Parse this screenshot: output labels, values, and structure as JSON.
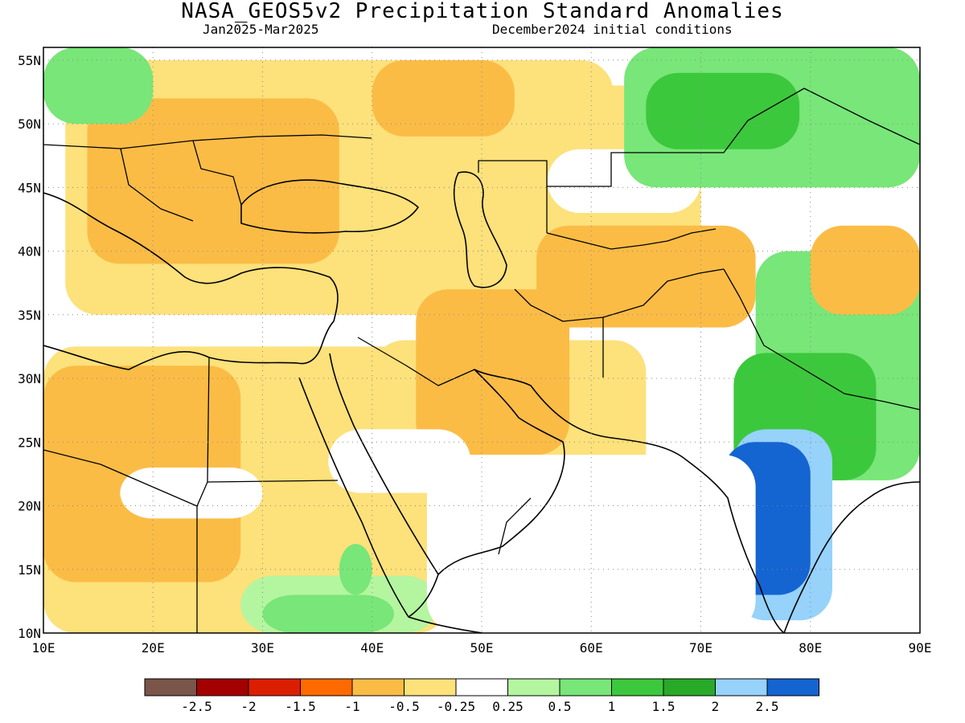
{
  "header": {
    "title": "NASA_GEOS5v2 Precipitation Standard Anomalies",
    "period": "Jan2025-Mar2025",
    "init": "December2024 initial conditions"
  },
  "map": {
    "lon_range": [
      10,
      90
    ],
    "lat_range": [
      10,
      56
    ],
    "lon_ticks": [
      "10E",
      "20E",
      "30E",
      "40E",
      "50E",
      "60E",
      "70E",
      "80E",
      "90E"
    ],
    "lat_ticks": [
      "10N",
      "15N",
      "20N",
      "25N",
      "30N",
      "35N",
      "40N",
      "45N",
      "50N",
      "55N"
    ],
    "grid": "dotted"
  },
  "colors": {
    "brown": "#7a5549",
    "darkred": "#a40000",
    "red": "#dc1e00",
    "orange": "#ff6a00",
    "lightorange": "#fbbc46",
    "yellow": "#fde17b",
    "white": "#ffffff",
    "lightgreen": "#b4f5a0",
    "green": "#78e678",
    "midgreen": "#3cc83c",
    "darkgreen": "#28aa28",
    "lightblue": "#96d2fa",
    "blue": "#1464d2"
  },
  "regions": [
    {
      "color": "yellow",
      "lon": [
        10,
        47
      ],
      "lat": [
        10,
        32.5
      ]
    },
    {
      "color": "yellow",
      "lon": [
        12,
        70
      ],
      "lat": [
        35,
        53
      ]
    },
    {
      "color": "yellow",
      "lon": [
        40,
        65
      ],
      "lat": [
        17,
        33
      ]
    },
    {
      "color": "yellow",
      "lon": [
        12,
        62
      ],
      "lat": [
        48,
        55
      ]
    },
    {
      "color": "lightorange",
      "lon": [
        10,
        28
      ],
      "lat": [
        14,
        31
      ]
    },
    {
      "color": "lightorange",
      "lon": [
        14,
        37
      ],
      "lat": [
        39,
        52
      ]
    },
    {
      "color": "lightorange",
      "lon": [
        44,
        58
      ],
      "lat": [
        24,
        37
      ]
    },
    {
      "color": "lightorange",
      "lon": [
        55,
        75
      ],
      "lat": [
        34,
        42
      ]
    },
    {
      "color": "lightorange",
      "lon": [
        40,
        53
      ],
      "lat": [
        49,
        55
      ]
    },
    {
      "color": "white",
      "lon": [
        56,
        70
      ],
      "lat": [
        43,
        48
      ]
    },
    {
      "color": "white",
      "lon": [
        36,
        49
      ],
      "lat": [
        21,
        26
      ]
    },
    {
      "color": "white",
      "lon": [
        17,
        30
      ],
      "lat": [
        19,
        23
      ]
    },
    {
      "color": "green",
      "lon": [
        63,
        90
      ],
      "lat": [
        45,
        56
      ]
    },
    {
      "color": "midgreen",
      "lon": [
        65,
        79
      ],
      "lat": [
        48,
        54
      ]
    },
    {
      "color": "green",
      "lon": [
        75,
        90
      ],
      "lat": [
        22,
        40
      ]
    },
    {
      "color": "midgreen",
      "lon": [
        73,
        86
      ],
      "lat": [
        22,
        32
      ]
    },
    {
      "color": "green",
      "lon": [
        10,
        20
      ],
      "lat": [
        50,
        56
      ]
    },
    {
      "color": "lightorange",
      "lon": [
        80,
        90
      ],
      "lat": [
        35,
        42
      ]
    },
    {
      "color": "lightgreen",
      "lon": [
        28,
        46
      ],
      "lat": [
        10,
        14.5
      ]
    },
    {
      "color": "green",
      "lon": [
        30,
        42
      ],
      "lat": [
        10,
        13
      ]
    },
    {
      "color": "green",
      "lon": [
        37,
        40
      ],
      "lat": [
        13,
        17
      ]
    },
    {
      "color": "lightblue",
      "lon": [
        73,
        82
      ],
      "lat": [
        11,
        26
      ]
    },
    {
      "color": "blue",
      "lon": [
        72,
        80
      ],
      "lat": [
        13,
        25
      ]
    },
    {
      "color": "blue",
      "lon": [
        70.5,
        76
      ],
      "lat": [
        20,
        23
      ]
    },
    {
      "color": "white",
      "lon": [
        45,
        75
      ],
      "lat": [
        10,
        24
      ]
    },
    {
      "color": "white",
      "lon": [
        86,
        90
      ],
      "lat": [
        10,
        22
      ]
    }
  ],
  "legend": {
    "swatches": [
      "brown",
      "darkred",
      "red",
      "orange",
      "lightorange",
      "yellow",
      "white",
      "lightgreen",
      "green",
      "midgreen",
      "darkgreen",
      "lightblue",
      "blue"
    ],
    "labels": [
      "-2.5",
      "-2",
      "-1.5",
      "-1",
      "-0.5",
      "-0.25",
      "0.25",
      "0.5",
      "1",
      "1.5",
      "2",
      "2.5"
    ]
  }
}
